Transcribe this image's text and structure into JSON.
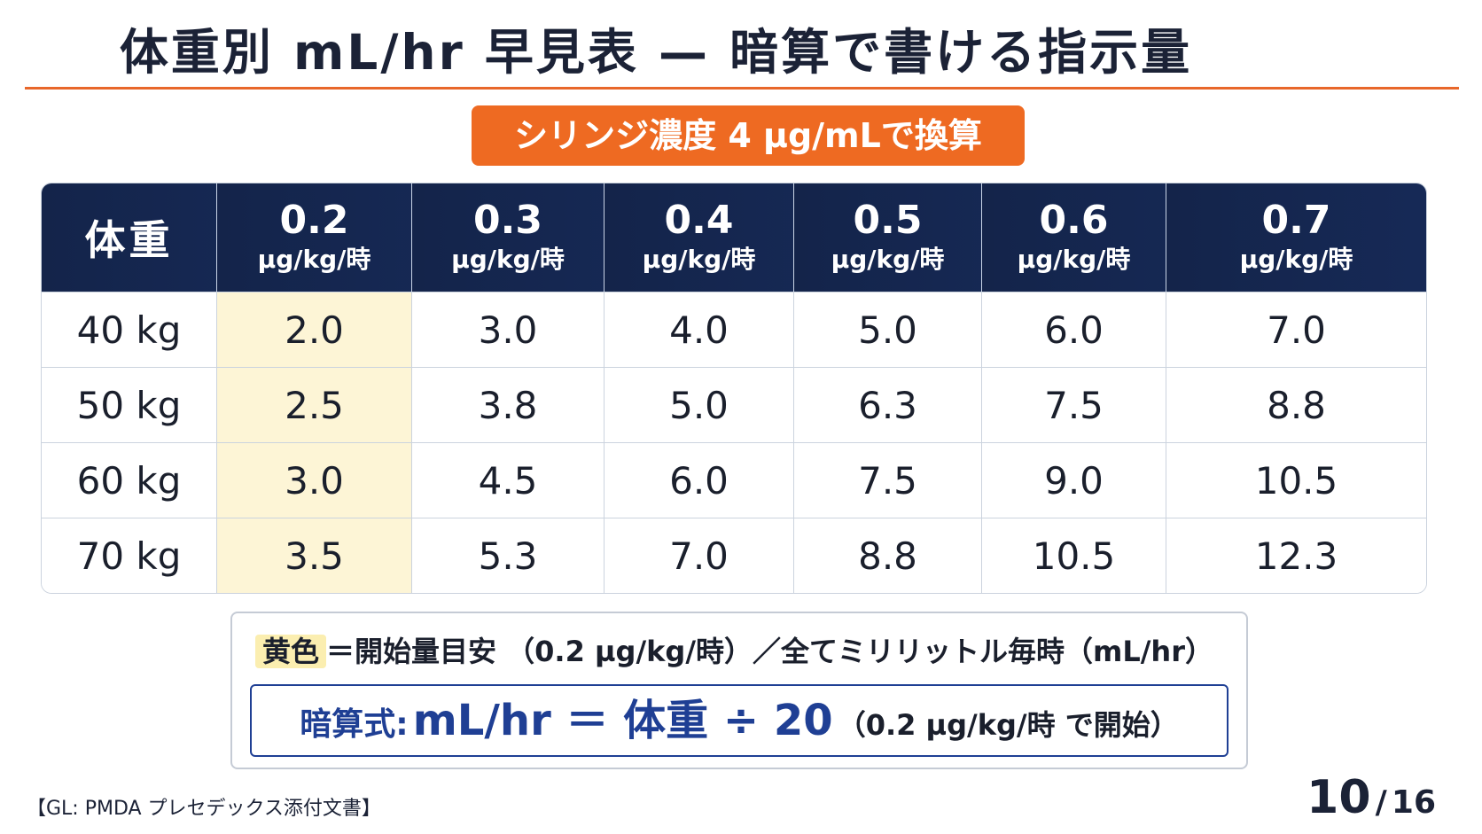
{
  "title": "体重別 mL/hr 早見表 — 暗算で書ける指示量",
  "badge": "シリンジ濃度 4 µg/mLで換算",
  "table": {
    "weight_header": "体重",
    "unit": "µg/kg/時",
    "doses": [
      "0.2",
      "0.3",
      "0.4",
      "0.5",
      "0.6",
      "0.7"
    ],
    "rows": [
      {
        "weight": "40 kg",
        "values": [
          "2.0",
          "3.0",
          "4.0",
          "5.0",
          "6.0",
          "7.0"
        ]
      },
      {
        "weight": "50 kg",
        "values": [
          "2.5",
          "3.8",
          "5.0",
          "6.3",
          "7.5",
          "8.8"
        ]
      },
      {
        "weight": "60 kg",
        "values": [
          "3.0",
          "4.5",
          "6.0",
          "7.5",
          "9.0",
          "10.5"
        ]
      },
      {
        "weight": "70 kg",
        "values": [
          "3.5",
          "5.3",
          "7.0",
          "8.8",
          "10.5",
          "12.3"
        ]
      }
    ],
    "highlight_column": 0,
    "highlight_color": "#fdf5d6",
    "header_color": "#14244a"
  },
  "legend": {
    "tag": "黄色",
    "text": "＝開始量目安 （0.2 µg/kg/時）／全てミリリットル毎時（mL/hr）",
    "tag_color": "#fbeeb0"
  },
  "formula": {
    "label": "暗算式:",
    "expression": "mL/hr ＝ 体重 ÷ 20",
    "note": "（0.2 µg/kg/時 で開始）"
  },
  "source": "【GL: PMDA プレセデックス添付文書】",
  "page": {
    "current": "10",
    "separator": "/",
    "total": "16"
  },
  "colors": {
    "accent": "#ee6a22",
    "primary": "#1f3f94"
  }
}
